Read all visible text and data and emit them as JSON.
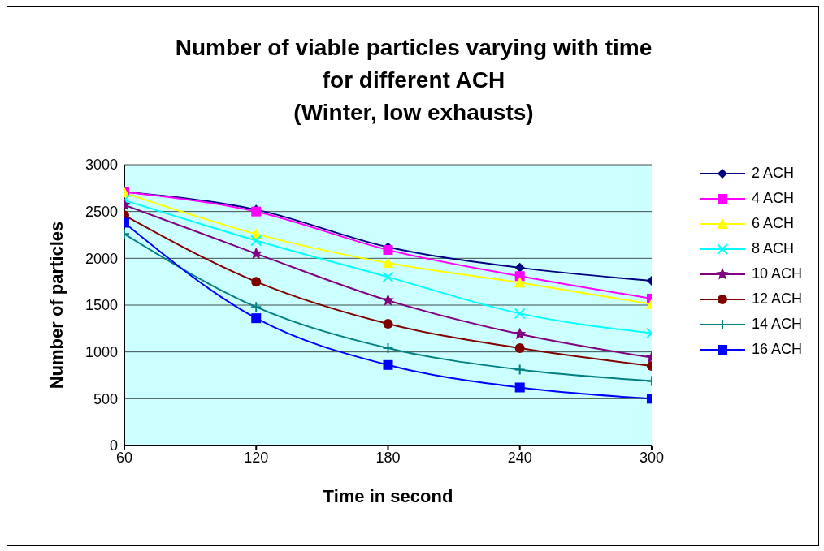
{
  "chart_data": {
    "type": "line",
    "title": "Number of viable particles  varying with time\nfor different ACH\n(Winter, low exhausts)",
    "xlabel": "Time in second",
    "ylabel": "Number of particles",
    "x": [
      60,
      120,
      180,
      240,
      300
    ],
    "xlim": [
      60,
      300
    ],
    "xticks": [
      60,
      120,
      180,
      240,
      300
    ],
    "ylim": [
      0,
      3000
    ],
    "yticks": [
      0,
      500,
      1000,
      1500,
      2000,
      2500,
      3000
    ],
    "grid": "y",
    "legend": "right",
    "line_style": "solid",
    "series": [
      {
        "name": "2 ACH",
        "color": "#000080",
        "marker": "diamond",
        "values": [
          2710,
          2520,
          2120,
          1900,
          1760
        ]
      },
      {
        "name": "4 ACH",
        "color": "#ff00ff",
        "marker": "square",
        "values": [
          2710,
          2500,
          2090,
          1810,
          1570
        ]
      },
      {
        "name": "6 ACH",
        "color": "#ffff00",
        "marker": "triangle",
        "values": [
          2700,
          2260,
          1950,
          1740,
          1510
        ]
      },
      {
        "name": "8 ACH",
        "color": "#00ffff",
        "marker": "cross",
        "values": [
          2620,
          2190,
          1800,
          1410,
          1200
        ]
      },
      {
        "name": "10 ACH",
        "color": "#800080",
        "marker": "star",
        "values": [
          2570,
          2050,
          1550,
          1190,
          940
        ]
      },
      {
        "name": "12 ACH",
        "color": "#800000",
        "marker": "circle",
        "values": [
          2460,
          1750,
          1300,
          1040,
          850
        ]
      },
      {
        "name": "14 ACH",
        "color": "#008080",
        "marker": "plus",
        "values": [
          2260,
          1480,
          1040,
          810,
          690
        ]
      },
      {
        "name": "16 ACH",
        "color": "#0000ff",
        "marker": "square",
        "values": [
          2380,
          1360,
          860,
          620,
          500
        ]
      }
    ]
  }
}
